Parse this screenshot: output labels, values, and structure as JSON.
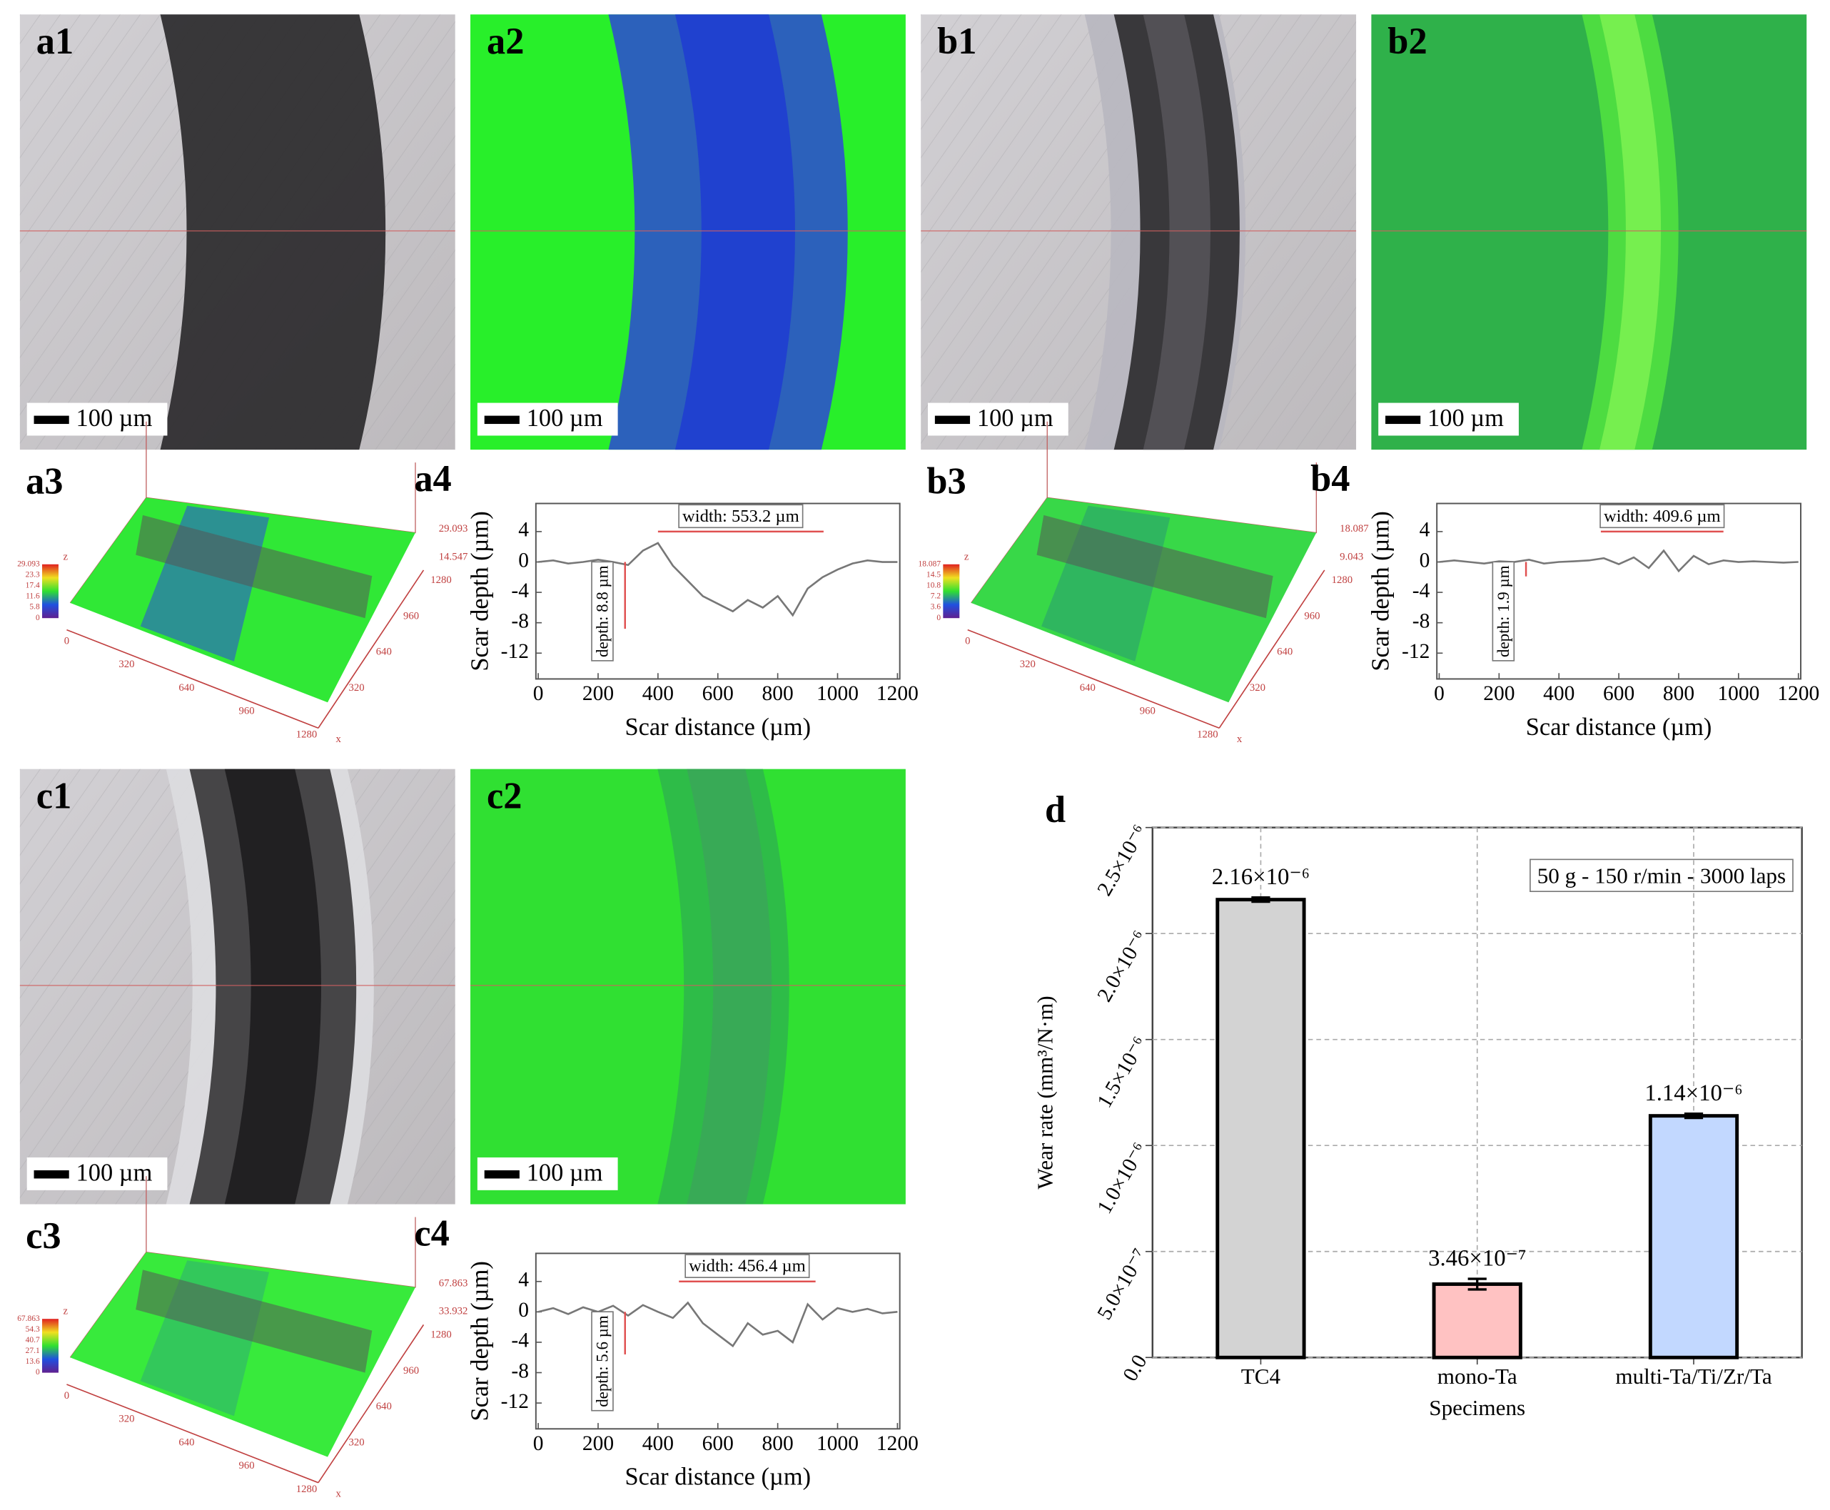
{
  "panels": {
    "micrographs": [
      {
        "label": "a1",
        "scale_bar": "100 µm"
      },
      {
        "label": "a2",
        "scale_bar": "100 µm"
      },
      {
        "label": "b1",
        "scale_bar": "100 µm"
      },
      {
        "label": "b2",
        "scale_bar": "100 µm"
      },
      {
        "label": "c1",
        "scale_bar": "100 µm"
      },
      {
        "label": "c2",
        "scale_bar": "100 µm"
      }
    ],
    "surfaces": [
      {
        "label": "a3",
        "z_labels": [
          29.093,
          14.547
        ],
        "colorbar": [
          29.093,
          23.3,
          17.4,
          11.6,
          5.8,
          0
        ],
        "x_ticks": [
          0,
          320,
          640,
          960,
          1280
        ],
        "y_ticks": [
          320,
          640,
          960,
          1280
        ],
        "x_axis": "x",
        "z_axis": "z"
      },
      {
        "label": "b3",
        "z_labels": [
          18.087,
          9.043
        ],
        "colorbar": [
          18.087,
          14.5,
          10.8,
          7.2,
          3.6,
          0
        ],
        "x_ticks": [
          0,
          320,
          640,
          960,
          1280
        ],
        "y_ticks": [
          320,
          640,
          960,
          1280
        ],
        "x_axis": "x",
        "z_axis": "z"
      },
      {
        "label": "c3",
        "z_labels": [
          67.863,
          33.932
        ],
        "colorbar": [
          67.863,
          54.3,
          40.7,
          27.1,
          13.6,
          0
        ],
        "x_ticks": [
          0,
          320,
          640,
          960,
          1280
        ],
        "y_ticks": [
          320,
          640,
          960,
          1280
        ],
        "x_axis": "x",
        "z_axis": "z"
      }
    ]
  },
  "chart_data": [
    {
      "type": "line",
      "label": "a4",
      "xlabel": "Scar distance (µm)",
      "ylabel": "Scar depth (µm)",
      "color": "#777777",
      "x": [
        0,
        50,
        100,
        150,
        200,
        250,
        300,
        350,
        400,
        450,
        500,
        550,
        600,
        650,
        700,
        750,
        800,
        850,
        900,
        950,
        1000,
        1050,
        1100,
        1150,
        1200
      ],
      "values": [
        0,
        0.2,
        -0.2,
        0,
        0.3,
        0,
        -0.4,
        1.5,
        2.5,
        -0.5,
        -2.5,
        -4.5,
        -5.5,
        -6.5,
        -5,
        -6,
        -4.5,
        -7,
        -3.5,
        -2,
        -1,
        -0.2,
        0.2,
        0,
        0
      ],
      "xlim": [
        0,
        1200
      ],
      "ylim": [
        -15.4,
        7.7
      ],
      "xticks": [
        0,
        200,
        400,
        600,
        800,
        1000,
        1200
      ],
      "yticks": [
        -12,
        -8,
        -4,
        0,
        4
      ],
      "width_label": "width: 553.2 µm",
      "width_span": [
        400,
        953.2
      ],
      "depth_label": "depth: 8.8 µm",
      "depth": -8.8,
      "depth_x": 290,
      "marker_color": "#e05050"
    },
    {
      "type": "line",
      "label": "b4",
      "xlabel": "Scar distance (µm)",
      "ylabel": "Scar depth (µm)",
      "color": "#777777",
      "x": [
        0,
        50,
        100,
        150,
        200,
        250,
        300,
        350,
        400,
        450,
        500,
        550,
        600,
        650,
        700,
        750,
        800,
        850,
        900,
        950,
        1000,
        1050,
        1100,
        1150,
        1200
      ],
      "values": [
        0,
        0.2,
        0,
        -0.2,
        0.1,
        0,
        0.3,
        -0.2,
        0,
        0.1,
        0.2,
        0.5,
        -0.3,
        0.6,
        -0.8,
        1.5,
        -1.2,
        0.8,
        -0.3,
        0.2,
        0,
        0.1,
        0,
        -0.1,
        0
      ],
      "xlim": [
        0,
        1200
      ],
      "ylim": [
        -15.4,
        7.7
      ],
      "xticks": [
        0,
        200,
        400,
        600,
        800,
        1000,
        1200
      ],
      "yticks": [
        -12,
        -8,
        -4,
        0,
        4
      ],
      "width_label": "width: 409.6 µm",
      "width_span": [
        540,
        949.6
      ],
      "depth_label": "depth: 1.9 µm",
      "depth": -1.9,
      "depth_x": 290,
      "marker_color": "#e05050"
    },
    {
      "type": "line",
      "label": "c4",
      "xlabel": "Scar distance (µm)",
      "ylabel": "Scar depth (µm)",
      "color": "#777777",
      "x": [
        0,
        50,
        100,
        150,
        200,
        250,
        300,
        350,
        400,
        450,
        500,
        550,
        600,
        650,
        700,
        750,
        800,
        850,
        900,
        950,
        1000,
        1050,
        1100,
        1150,
        1200
      ],
      "values": [
        0,
        0.5,
        -0.3,
        0.6,
        0,
        0.8,
        -0.5,
        0.9,
        0,
        -0.8,
        1.2,
        -1.5,
        -3,
        -4.5,
        -1.5,
        -3,
        -2.5,
        -4,
        1,
        -1,
        0.5,
        0,
        0.4,
        -0.2,
        0
      ],
      "xlim": [
        0,
        1200
      ],
      "ylim": [
        -15.4,
        7.7
      ],
      "xticks": [
        0,
        200,
        400,
        600,
        800,
        1000,
        1200
      ],
      "yticks": [
        -12,
        -8,
        -4,
        0,
        4
      ],
      "width_label": "width: 456.4 µm",
      "width_span": [
        470,
        926.4
      ],
      "depth_label": "depth: 5.6 µm",
      "depth": -5.6,
      "depth_x": 290,
      "marker_color": "#e05050"
    },
    {
      "type": "bar",
      "label": "d",
      "ylabel": "Wear rate (mm³/N·m)",
      "xlabel": "Specimens",
      "annotation": "50 g - 150 r/min - 3000 laps",
      "categories": [
        "TC4",
        "mono-Ta",
        "multi-Ta/Ti/Zr/Ta"
      ],
      "values": [
        2.16e-06,
        3.46e-07,
        1.14e-06
      ],
      "errors": [
        1e-08,
        2.5e-08,
        1e-08
      ],
      "value_labels": [
        "2.16×10⁻⁶",
        "3.46×10⁻⁷",
        "1.14×10⁻⁶"
      ],
      "colors": [
        "#d3d3d3",
        "#ffc2c2",
        "#c2d8ff"
      ],
      "ylim": [
        0,
        2.5e-06
      ],
      "yticks": [
        {
          "value": 0,
          "label": "0.0"
        },
        {
          "value": 5e-07,
          "label": "5.0×10⁻⁷"
        },
        {
          "value": 1e-06,
          "label": "1.0×10⁻⁶"
        },
        {
          "value": 1.5e-06,
          "label": "1.5×10⁻⁶"
        },
        {
          "value": 2e-06,
          "label": "2.0×10⁻⁶"
        },
        {
          "value": 2.5e-06,
          "label": "2.5×10⁻⁶"
        }
      ],
      "grid": true
    }
  ]
}
